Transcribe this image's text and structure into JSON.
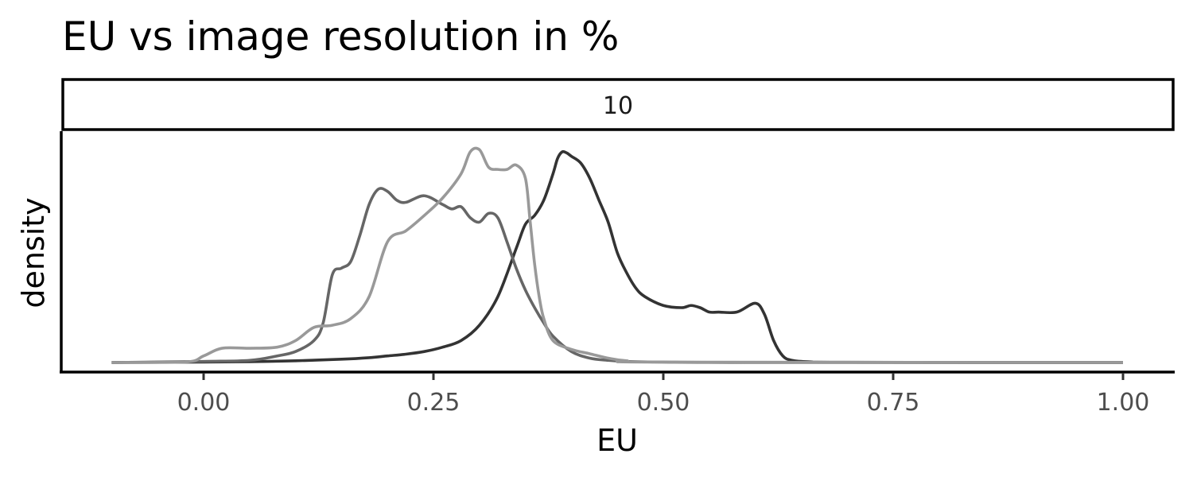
{
  "chart_data": {
    "type": "line",
    "subtype": "density",
    "title": "EU vs image resolution in %",
    "facet_label": "10",
    "xlabel": "EU",
    "ylabel": "density",
    "xlim": [
      -0.1,
      1.0
    ],
    "x_ticks": [
      0.0,
      0.25,
      0.5,
      0.75,
      1.0
    ],
    "x_tick_labels": [
      "0.00",
      "0.25",
      "0.50",
      "0.75",
      "1.00"
    ],
    "y_ticks_shown": false,
    "grid": false,
    "legend": "none",
    "ylim": [
      0,
      1.0
    ],
    "series": [
      {
        "color": "#333333",
        "x": [
          -0.1,
          0.0,
          0.05,
          0.1,
          0.15,
          0.18,
          0.2,
          0.22,
          0.24,
          0.26,
          0.28,
          0.3,
          0.32,
          0.34,
          0.35,
          0.36,
          0.37,
          0.38,
          0.385,
          0.39,
          0.395,
          0.4,
          0.41,
          0.42,
          0.43,
          0.44,
          0.45,
          0.46,
          0.47,
          0.48,
          0.5,
          0.52,
          0.53,
          0.54,
          0.55,
          0.56,
          0.58,
          0.6,
          0.61,
          0.62,
          0.63,
          0.64,
          0.66,
          0.7,
          1.0
        ],
        "y": [
          0,
          0.002,
          0.004,
          0.008,
          0.015,
          0.022,
          0.03,
          0.038,
          0.05,
          0.07,
          0.1,
          0.17,
          0.3,
          0.52,
          0.63,
          0.67,
          0.74,
          0.86,
          0.93,
          0.96,
          0.955,
          0.94,
          0.91,
          0.84,
          0.74,
          0.64,
          0.5,
          0.41,
          0.34,
          0.3,
          0.26,
          0.25,
          0.26,
          0.25,
          0.23,
          0.23,
          0.23,
          0.27,
          0.22,
          0.1,
          0.03,
          0.01,
          0.003,
          0.001,
          0
        ]
      },
      {
        "color": "#666666",
        "x": [
          -0.1,
          0.0,
          0.05,
          0.08,
          0.1,
          0.12,
          0.13,
          0.14,
          0.15,
          0.16,
          0.17,
          0.18,
          0.19,
          0.2,
          0.21,
          0.22,
          0.24,
          0.26,
          0.27,
          0.28,
          0.29,
          0.3,
          0.31,
          0.32,
          0.33,
          0.34,
          0.35,
          0.36,
          0.37,
          0.38,
          0.4,
          0.42,
          0.44,
          0.46,
          0.5,
          0.6,
          1.0
        ],
        "y": [
          0,
          0.005,
          0.01,
          0.03,
          0.05,
          0.1,
          0.18,
          0.4,
          0.43,
          0.46,
          0.58,
          0.72,
          0.79,
          0.78,
          0.74,
          0.73,
          0.76,
          0.72,
          0.7,
          0.71,
          0.66,
          0.64,
          0.68,
          0.66,
          0.55,
          0.43,
          0.33,
          0.25,
          0.18,
          0.12,
          0.05,
          0.02,
          0.01,
          0.005,
          0.002,
          0,
          0
        ]
      },
      {
        "color": "#999999",
        "x": [
          -0.1,
          -0.02,
          0.0,
          0.02,
          0.05,
          0.08,
          0.1,
          0.12,
          0.14,
          0.16,
          0.18,
          0.2,
          0.22,
          0.24,
          0.26,
          0.28,
          0.29,
          0.3,
          0.31,
          0.32,
          0.33,
          0.34,
          0.35,
          0.355,
          0.36,
          0.365,
          0.37,
          0.38,
          0.4,
          0.42,
          0.44,
          0.46,
          0.5,
          1.0
        ],
        "y": [
          0,
          0.002,
          0.03,
          0.065,
          0.065,
          0.07,
          0.1,
          0.16,
          0.17,
          0.2,
          0.3,
          0.55,
          0.6,
          0.67,
          0.75,
          0.86,
          0.96,
          0.97,
          0.89,
          0.88,
          0.88,
          0.9,
          0.84,
          0.65,
          0.45,
          0.3,
          0.2,
          0.1,
          0.06,
          0.04,
          0.02,
          0.008,
          0.002,
          0
        ]
      }
    ]
  }
}
